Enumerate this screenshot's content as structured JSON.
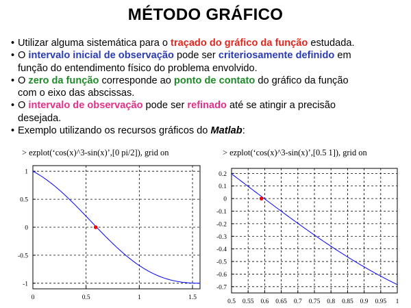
{
  "slide": {
    "title": "MÉTODO GRÁFICO",
    "colors": {
      "red": "#e0271f",
      "blue": "#2a3cb0",
      "green": "#1f8a2a",
      "magenta": "#e0308a",
      "curve": "#0000ff",
      "marker": "#ff0000"
    },
    "bullets": [
      {
        "bullet": "•",
        "lines": [
          [
            {
              "t": "Utilizar alguma sistemática para o "
            },
            {
              "t": "traçado do gráfico da função",
              "c": "red"
            },
            {
              "t": " estudada."
            }
          ]
        ]
      },
      {
        "bullet": "•",
        "lines": [
          [
            {
              "t": "O "
            },
            {
              "t": "intervalo inicial de observação",
              "c": "blue"
            },
            {
              "t": " pode ser "
            },
            {
              "t": "criteriosamente definido",
              "c": "blue"
            },
            {
              "t": " em"
            }
          ],
          [
            {
              "t": "função do entendimento físico do problema envolvido."
            }
          ]
        ]
      },
      {
        "bullet": "•",
        "lines": [
          [
            {
              "t": "O "
            },
            {
              "t": "zero da função",
              "c": "green"
            },
            {
              "t": " corresponde ao "
            },
            {
              "t": "ponto de contato",
              "c": "green"
            },
            {
              "t": " do gráfico da função"
            }
          ],
          [
            {
              "t": "com o eixo das abscissas."
            }
          ]
        ]
      },
      {
        "bullet": "•",
        "lines": [
          [
            {
              "t": "O "
            },
            {
              "t": "intervalo de observação",
              "c": "magenta"
            },
            {
              "t": " pode ser "
            },
            {
              "t": "refinado",
              "c": "magenta"
            },
            {
              "t": " até se atingir a precisão"
            }
          ],
          [
            {
              "t": "desejada."
            }
          ]
        ]
      },
      {
        "bullet": "•",
        "lines": [
          [
            {
              "t": "Exemplo utilizando os recursos gráficos do "
            },
            {
              "t": "Matlab",
              "s": "bi"
            },
            {
              "t": ":"
            }
          ]
        ]
      }
    ]
  },
  "commands": {
    "left": "> ezplot(‘cos(x)^3-sin(x)’,[0 pi/2]), grid on",
    "right": "> ezplot(‘cos(x)^3-sin(x)’,[0.5 1]), grid on"
  },
  "chart_data": [
    {
      "type": "line",
      "title": "",
      "xlabel": "",
      "ylabel": "",
      "function": "cos(x)^3-sin(x)",
      "xlim": [
        0,
        1.5708
      ],
      "ylim": [
        -1.1,
        1.1
      ],
      "grid": true,
      "x_ticks": [
        0,
        0.5,
        1,
        1.5
      ],
      "x_tick_labels": [
        "0",
        "0.5",
        "1",
        "1.5"
      ],
      "y_ticks": [
        1,
        0.5,
        0,
        -0.5,
        -1
      ],
      "y_tick_labels": [
        "1",
        "0.5",
        "0",
        "-0.5",
        "-1"
      ],
      "series": [
        {
          "x": [
            0,
            0.1,
            0.2,
            0.3,
            0.4,
            0.5,
            0.6,
            0.7,
            0.8,
            0.9,
            1.0,
            1.1,
            1.2,
            1.3,
            1.4,
            1.5,
            1.5708
          ],
          "y": [
            1.0,
            0.8853,
            0.745,
            0.5821,
            0.402,
            0.2124,
            0.0227,
            -0.1571,
            -0.3165,
            -0.4464,
            -0.6837,
            -0.8817,
            -0.982,
            -1.0138,
            -1.0087,
            -1.0123,
            -1.0
          ]
        }
      ],
      "marker": {
        "x": 0.5902,
        "y": 0.0
      }
    },
    {
      "type": "line",
      "title": "",
      "xlabel": "",
      "ylabel": "",
      "function": "cos(x)^3-sin(x)",
      "xlim": [
        0.5,
        1.0
      ],
      "ylim": [
        -0.75,
        0.24
      ],
      "grid": true,
      "x_ticks": [
        0.5,
        0.55,
        0.6,
        0.65,
        0.7,
        0.75,
        0.8,
        0.85,
        0.9,
        0.95,
        1
      ],
      "x_tick_labels": [
        "0.5",
        "0.55",
        "0.6",
        "0.65",
        "0.7",
        "0.75",
        "0.8",
        "0.85",
        "0.9",
        "0.95",
        "1"
      ],
      "y_ticks": [
        0.2,
        0.1,
        0,
        -0.1,
        -0.2,
        -0.3,
        -0.4,
        -0.5,
        -0.6,
        -0.7
      ],
      "y_tick_labels": [
        "0.2",
        "0.1",
        "0",
        "-0.1",
        "-0.2",
        "-0.3",
        "-0.4",
        "-0.5",
        "-0.6",
        "-0.7"
      ],
      "series": [
        {
          "x": [
            0.5,
            0.55,
            0.6,
            0.65,
            0.7,
            0.75,
            0.8,
            0.85,
            0.9,
            0.95,
            1.0
          ],
          "y": [
            0.2124,
            0.1176,
            0.0227,
            -0.0706,
            -0.1571,
            -0.2404,
            -0.3165,
            -0.3857,
            -0.4464,
            -0.5006,
            -0.6837
          ]
        }
      ],
      "marker": {
        "x": 0.5902,
        "y": 0.0
      }
    }
  ]
}
